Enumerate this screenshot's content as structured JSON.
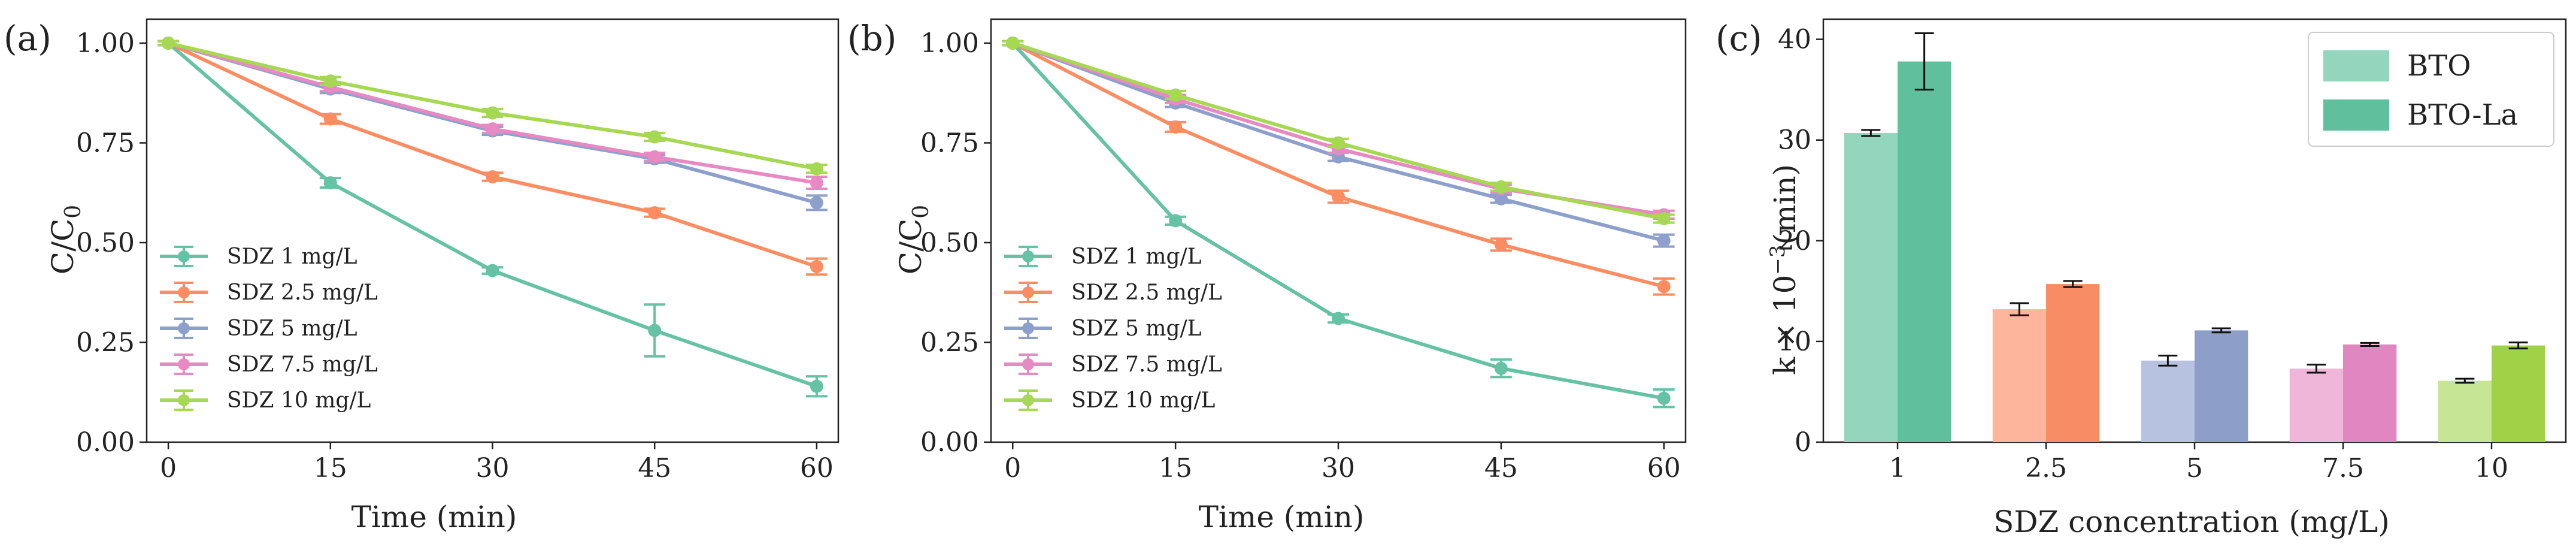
{
  "chart_data": [
    {
      "type": "line",
      "panel_label": "(a)",
      "x": [
        0,
        15,
        30,
        45,
        60
      ],
      "xlabel": "Time (min)",
      "ylabel": "C/C₀",
      "ylabel_main": "C/C",
      "ylabel_sub": "0",
      "xlim": [
        -2,
        62
      ],
      "ylim": [
        0,
        1.06
      ],
      "xticks": [
        "0",
        "15",
        "30",
        "45",
        "60"
      ],
      "yticks": [
        "0.00",
        "0.25",
        "0.50",
        "0.75",
        "1.00"
      ],
      "legend_position": "lower-left",
      "series": [
        {
          "name": "SDZ 1 mg/L",
          "color": "#66c2a5",
          "values": [
            1.0,
            0.65,
            0.43,
            0.28,
            0.14
          ],
          "errors": [
            0.005,
            0.012,
            0.008,
            0.065,
            0.025
          ]
        },
        {
          "name": "SDZ 2.5 mg/L",
          "color": "#fc8d62",
          "values": [
            1.0,
            0.81,
            0.665,
            0.575,
            0.44
          ],
          "errors": [
            0.005,
            0.012,
            0.01,
            0.01,
            0.02
          ]
        },
        {
          "name": "SDZ 5 mg/L",
          "color": "#8da0cb",
          "values": [
            1.0,
            0.885,
            0.78,
            0.71,
            0.6
          ],
          "errors": [
            0.005,
            0.01,
            0.01,
            0.01,
            0.018
          ]
        },
        {
          "name": "SDZ 7.5 mg/L",
          "color": "#e78ac3",
          "values": [
            1.0,
            0.89,
            0.785,
            0.715,
            0.65
          ],
          "errors": [
            0.005,
            0.01,
            0.01,
            0.01,
            0.015
          ]
        },
        {
          "name": "SDZ 10 mg/L",
          "color": "#a6d854",
          "values": [
            1.0,
            0.905,
            0.825,
            0.765,
            0.685
          ],
          "errors": [
            0.005,
            0.01,
            0.01,
            0.01,
            0.01
          ]
        }
      ]
    },
    {
      "type": "line",
      "panel_label": "(b)",
      "x": [
        0,
        15,
        30,
        45,
        60
      ],
      "xlabel": "Time (min)",
      "ylabel": "C/C₀",
      "ylabel_main": "C/C",
      "ylabel_sub": "0",
      "xlim": [
        -2,
        62
      ],
      "ylim": [
        0,
        1.06
      ],
      "xticks": [
        "0",
        "15",
        "30",
        "45",
        "60"
      ],
      "yticks": [
        "0.00",
        "0.25",
        "0.50",
        "0.75",
        "1.00"
      ],
      "legend_position": "lower-left",
      "series": [
        {
          "name": "SDZ 1 mg/L",
          "color": "#66c2a5",
          "values": [
            1.0,
            0.555,
            0.31,
            0.185,
            0.11
          ],
          "errors": [
            0.005,
            0.01,
            0.01,
            0.022,
            0.022
          ]
        },
        {
          "name": "SDZ 2.5 mg/L",
          "color": "#fc8d62",
          "values": [
            1.0,
            0.79,
            0.615,
            0.495,
            0.39
          ],
          "errors": [
            0.005,
            0.012,
            0.015,
            0.015,
            0.02
          ]
        },
        {
          "name": "SDZ 5 mg/L",
          "color": "#8da0cb",
          "values": [
            1.0,
            0.85,
            0.715,
            0.61,
            0.505
          ],
          "errors": [
            0.005,
            0.01,
            0.01,
            0.01,
            0.015
          ]
        },
        {
          "name": "SDZ 7.5 mg/L",
          "color": "#e78ac3",
          "values": [
            1.0,
            0.86,
            0.735,
            0.635,
            0.57
          ],
          "errors": [
            0.005,
            0.01,
            0.01,
            0.01,
            0.01
          ]
        },
        {
          "name": "SDZ 10 mg/L",
          "color": "#a6d854",
          "values": [
            1.0,
            0.87,
            0.75,
            0.64,
            0.56
          ],
          "errors": [
            0.005,
            0.01,
            0.01,
            0.01,
            0.01
          ]
        }
      ]
    },
    {
      "type": "bar",
      "panel_label": "(c)",
      "categories": [
        "1",
        "2.5",
        "5",
        "7.5",
        "10"
      ],
      "xlabel": "SDZ concentration (mg/L)",
      "ylabel": "k × 10⁻³(min)",
      "ylabel_prefix": "k × 10",
      "ylabel_sup": "−3",
      "ylabel_suffix": "(min)",
      "ylim": [
        0,
        42
      ],
      "yticks": [
        "0",
        "10",
        "20",
        "30",
        "40"
      ],
      "legend_position": "top-right",
      "series": [
        {
          "name": "BTO",
          "legend_color": "#93d6bd",
          "colors": [
            "#93d6bd",
            "#fdb59b",
            "#b7c2e0",
            "#f0b6d9",
            "#c6e595"
          ],
          "values": [
            30.7,
            13.2,
            8.1,
            7.3,
            6.1
          ],
          "errors": [
            0.3,
            0.6,
            0.5,
            0.4,
            0.2
          ]
        },
        {
          "name": "BTO-La",
          "legend_color": "#60bf9c",
          "colors": [
            "#60bf9c",
            "#f88c64",
            "#8d9ec9",
            "#e187c0",
            "#9fd247"
          ],
          "values": [
            37.8,
            15.7,
            11.1,
            9.7,
            9.6
          ],
          "errors": [
            2.8,
            0.3,
            0.2,
            0.15,
            0.3
          ]
        }
      ]
    }
  ]
}
